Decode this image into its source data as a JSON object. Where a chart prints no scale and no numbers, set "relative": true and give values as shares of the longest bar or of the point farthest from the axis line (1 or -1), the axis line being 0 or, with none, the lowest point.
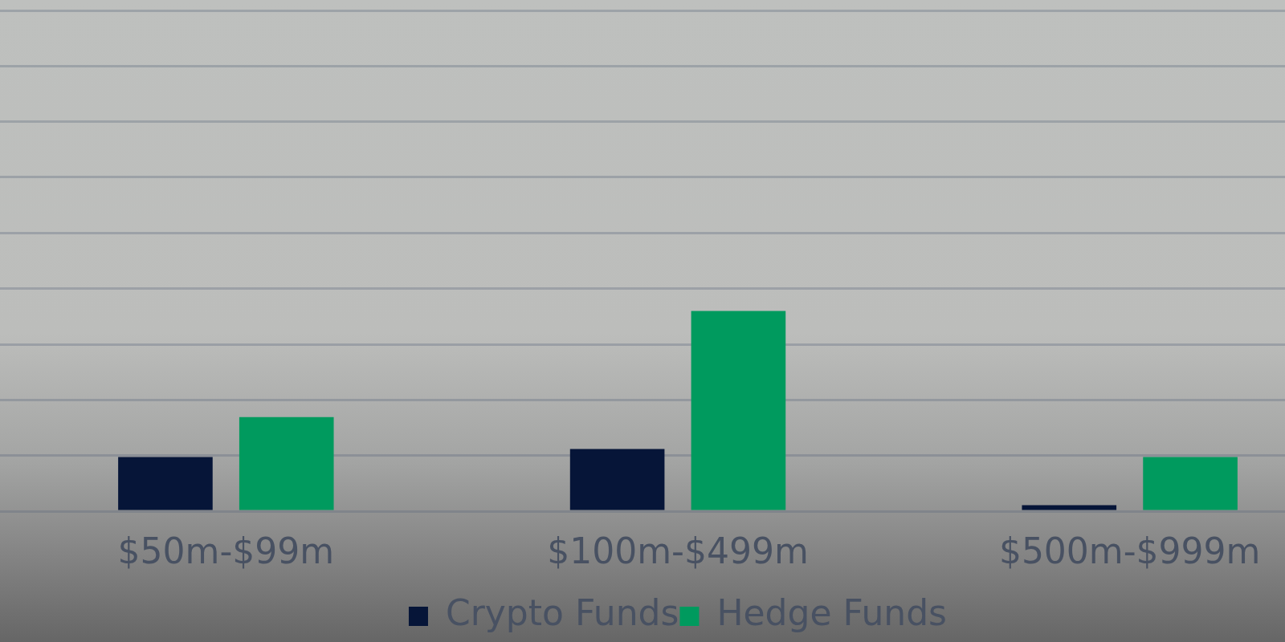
{
  "chart_data": {
    "type": "bar",
    "categories": [
      "$50m-$99m",
      "$100m-$499m",
      "$500m-$999m"
    ],
    "series": [
      {
        "name": "Crypto Funds",
        "color": "#061538",
        "values": [
          0.27,
          0.31,
          0.03
        ]
      },
      {
        "name": "Hedge Funds",
        "color": "#009a5e",
        "values": [
          0.47,
          1,
          0.27
        ]
      }
    ],
    "relative": true,
    "grid": "y",
    "legend": "bottom"
  }
}
